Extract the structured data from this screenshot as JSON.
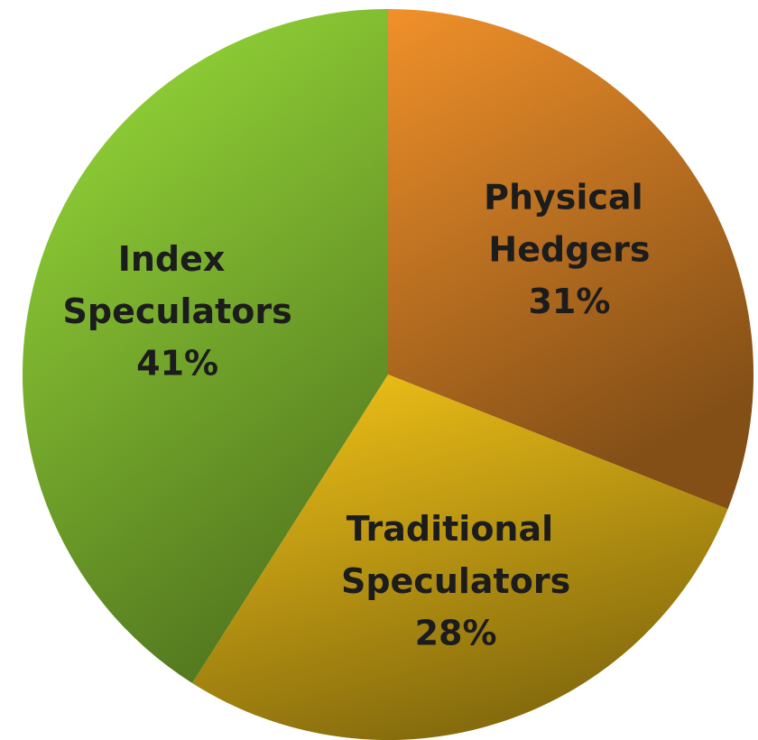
{
  "chart_data": {
    "type": "pie",
    "categories": [
      "Physical Hedgers",
      "Traditional Speculators",
      "Index Speculators"
    ],
    "values": [
      31,
      28,
      41
    ],
    "value_labels": [
      "31%",
      "28%",
      "41%"
    ],
    "colors": [
      "#f0902a",
      "#f5c518",
      "#9be03a"
    ]
  }
}
